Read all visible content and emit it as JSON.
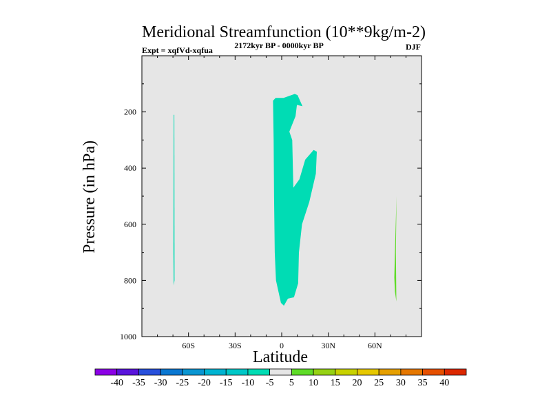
{
  "chart_data": {
    "type": "contour",
    "title": "Meridional Streamfunction (10**9kg/m-2)",
    "subtitle_left": "Expt = xqfVd-xqfua",
    "subtitle_center": "2172kyr BP - 0000kyr BP",
    "subtitle_right": "DJF",
    "xlabel": "Latitude",
    "ylabel": "Pressure (in hPa)",
    "xlim": [
      -90,
      90
    ],
    "ylim": [
      1000,
      0
    ],
    "x_ticks": [
      {
        "value": -60,
        "label": "60S"
      },
      {
        "value": -30,
        "label": "30S"
      },
      {
        "value": 0,
        "label": "0"
      },
      {
        "value": 30,
        "label": "30N"
      },
      {
        "value": 60,
        "label": "60N"
      }
    ],
    "y_ticks": [
      {
        "value": 200,
        "label": "200"
      },
      {
        "value": 400,
        "label": "400"
      },
      {
        "value": 600,
        "label": "600"
      },
      {
        "value": 800,
        "label": "800"
      },
      {
        "value": 1000,
        "label": "1000"
      }
    ],
    "background_color": "#e6e6e6",
    "regions": [
      {
        "name": "sh-polar-negative",
        "level_range": [
          -10,
          -5
        ],
        "color": "#00dcb4",
        "points": [
          [
            -69.5,
            210
          ],
          [
            -69.1,
            210
          ],
          [
            -69.0,
            800
          ],
          [
            -69.5,
            818
          ],
          [
            -69.7,
            700
          ]
        ]
      },
      {
        "name": "tropical-negative",
        "level_range": [
          -10,
          -5
        ],
        "color": "#00dcb4",
        "points": [
          [
            -5.6,
            160
          ],
          [
            -3.9,
            150
          ],
          [
            1.2,
            150
          ],
          [
            8.4,
            136
          ],
          [
            10.2,
            140
          ],
          [
            13.4,
            180
          ],
          [
            9.8,
            175
          ],
          [
            8.9,
            215
          ],
          [
            4.9,
            270
          ],
          [
            6.8,
            300
          ],
          [
            7.5,
            470
          ],
          [
            11.4,
            440
          ],
          [
            15.1,
            370
          ],
          [
            20.6,
            335
          ],
          [
            22.6,
            342
          ],
          [
            22.0,
            420
          ],
          [
            17.8,
            520
          ],
          [
            13.1,
            600
          ],
          [
            11.1,
            700
          ],
          [
            10.6,
            810
          ],
          [
            7.9,
            860
          ],
          [
            4.0,
            865
          ],
          [
            1.4,
            890
          ],
          [
            -0.5,
            880
          ],
          [
            -3.7,
            800
          ],
          [
            -4.5,
            700
          ],
          [
            -4.9,
            500
          ],
          [
            -5.2,
            300
          ]
        ]
      },
      {
        "name": "nh-polar-positive",
        "level_range": [
          5,
          10
        ],
        "color": "#5fdc28",
        "points": [
          [
            74.4,
            410
          ],
          [
            73.9,
            500
          ],
          [
            73.5,
            700
          ],
          [
            73.8,
            875
          ],
          [
            72.9,
            840
          ],
          [
            72.5,
            790
          ],
          [
            72.9,
            700
          ],
          [
            73.9,
            500
          ]
        ]
      }
    ],
    "colorbar": {
      "labels": [
        "-40",
        "-35",
        "-30",
        "-25",
        "-20",
        "-15",
        "-10",
        "-5",
        "5",
        "10",
        "15",
        "20",
        "25",
        "30",
        "35",
        "40"
      ],
      "colors": [
        "#8c00e6",
        "#5a14dc",
        "#2850dc",
        "#0a78d2",
        "#0a96d2",
        "#00b4d2",
        "#00c8c8",
        "#00dcb4",
        "#e6e6e6",
        "#5fdc28",
        "#96d214",
        "#c8d200",
        "#e6c800",
        "#e6a000",
        "#e67800",
        "#e65000",
        "#dc2800"
      ]
    }
  }
}
